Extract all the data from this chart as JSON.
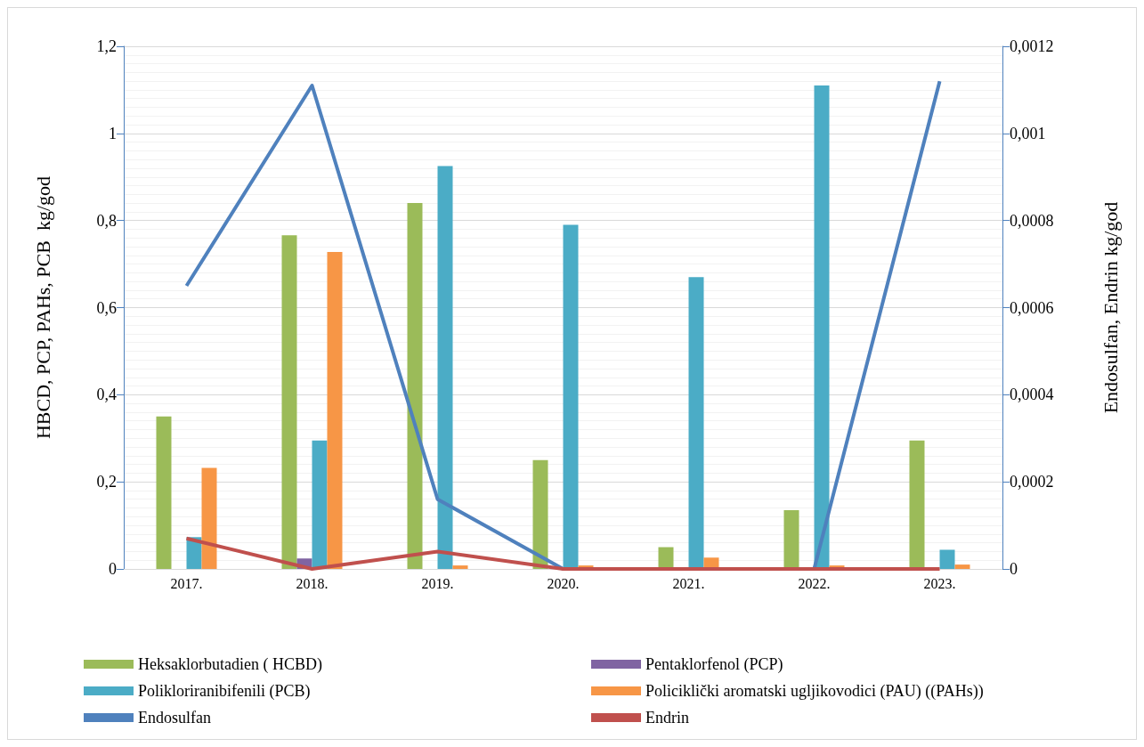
{
  "chart_data": {
    "type": "bar",
    "ylabel": "HBCD, PCP, PAHs, PCB  kg/god",
    "y2label": "Endosulfan, Endrin kg/god",
    "categories": [
      "2017.",
      "2018.",
      "2019.",
      "2020.",
      "2021.",
      "2022.",
      "2023."
    ],
    "series": [
      {
        "name": "Heksaklorbutadien ( HCBD)",
        "color": "#9bbb59",
        "values": [
          0.35,
          0.766,
          0.84,
          0.25,
          0.05,
          0.135,
          0.295
        ]
      },
      {
        "name": "Pentaklorfenol (PCP)",
        "color": "#8064a2",
        "values": [
          0,
          0.024,
          0,
          0,
          0,
          0,
          0
        ]
      },
      {
        "name": "Polikloriranibifenili (PCB)",
        "color": "#4bacc6",
        "values": [
          0.073,
          0.295,
          0.925,
          0.79,
          0.67,
          1.11,
          0.044
        ]
      },
      {
        "name": "Policiklički aromatski ugljikovodici (PAU) ((PAHs))",
        "color": "#f79646",
        "values": [
          0.232,
          0.728,
          0.008,
          0.008,
          0.026,
          0.008,
          0.01
        ]
      },
      {
        "name": "Endosulfan",
        "type": "line",
        "axis": "y2",
        "color": "#4f81bd",
        "values": [
          0.00065,
          0.00111,
          0.00016,
          0,
          0,
          0,
          0.00112
        ]
      },
      {
        "name": "Endrin",
        "type": "line",
        "axis": "y2",
        "color": "#c0504d",
        "values": [
          7e-05,
          0,
          4e-05,
          0,
          0,
          0,
          0
        ]
      }
    ],
    "ylim": [
      0,
      1.2
    ],
    "yticks": [
      0,
      {
        "value": 0.2,
        "label": "0,2"
      },
      {
        "value": 0.4,
        "label": "0,4"
      },
      {
        "value": 0.6,
        "label": "0,6"
      },
      {
        "value": 0.8,
        "label": "0,8"
      },
      1,
      {
        "value": 1.2,
        "label": "1,2"
      }
    ],
    "y2lim": [
      0,
      0.0012
    ],
    "y2ticks": [
      0,
      {
        "value": 0.0002,
        "label": "0,0002"
      },
      {
        "value": 0.0004,
        "label": "0,0004"
      },
      {
        "value": 0.0006,
        "label": "0,0006"
      },
      {
        "value": 0.0008,
        "label": "0,0008"
      },
      {
        "value": 0.001,
        "label": "0,001"
      },
      {
        "value": 0.0012,
        "label": "0,0012"
      }
    ],
    "grid": "y",
    "legend": "bottom",
    "marker": "none"
  }
}
